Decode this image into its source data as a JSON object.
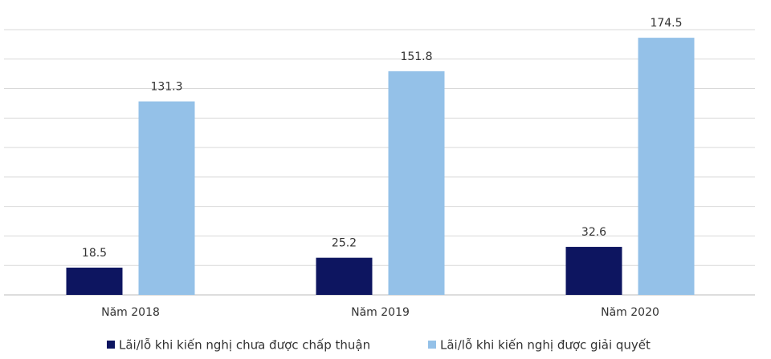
{
  "chart_data": {
    "type": "bar",
    "categories": [
      "Năm 2018",
      "Năm 2019",
      "Năm 2020"
    ],
    "series": [
      {
        "name": "Lãi/lỗ khi kiến nghị chưa được chấp thuận",
        "color": "#0d1560",
        "values": [
          18.5,
          25.2,
          32.6
        ]
      },
      {
        "name": "Lãi/lỗ khi kiến nghị được giải quyết",
        "color": "#94c1e8",
        "values": [
          131.3,
          151.8,
          174.5
        ]
      }
    ],
    "ylim": [
      0,
      180
    ],
    "yticks": [
      0,
      20,
      40,
      60,
      80,
      100,
      120,
      140,
      160,
      180
    ],
    "grid": true
  }
}
